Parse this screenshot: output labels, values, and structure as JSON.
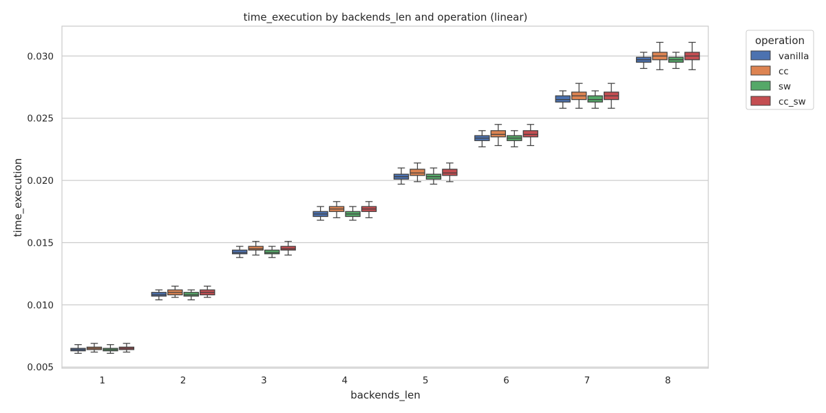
{
  "chart_data": {
    "type": "box",
    "title": "time_execution by backends_len and operation (linear)",
    "xlabel": "backends_len",
    "ylabel": "time_execution",
    "categories": [
      "1",
      "2",
      "3",
      "4",
      "5",
      "6",
      "7",
      "8"
    ],
    "ylim": [
      0.0049,
      0.0324
    ],
    "yticks": [
      0.005,
      0.01,
      0.015,
      0.02,
      0.025,
      0.03
    ],
    "ytick_labels": [
      "0.005",
      "0.010",
      "0.015",
      "0.020",
      "0.025",
      "0.030"
    ],
    "grid": "y",
    "legend": {
      "title": "operation",
      "placement": "outside-top-right",
      "entries": [
        {
          "name": "vanilla",
          "color": "#4c72b0"
        },
        {
          "name": "cc",
          "color": "#dd8452"
        },
        {
          "name": "sw",
          "color": "#55a868"
        },
        {
          "name": "cc_sw",
          "color": "#c44e52"
        }
      ]
    },
    "series": [
      {
        "name": "vanilla",
        "color": "#4c72b0",
        "boxes": [
          {
            "min": 0.0061,
            "q1": 0.0063,
            "median": 0.0064,
            "q3": 0.0065,
            "max": 0.0068
          },
          {
            "min": 0.0104,
            "q1": 0.0107,
            "median": 0.0108,
            "q3": 0.011,
            "max": 0.0112
          },
          {
            "min": 0.0138,
            "q1": 0.0141,
            "median": 0.0142,
            "q3": 0.0144,
            "max": 0.0147
          },
          {
            "min": 0.0168,
            "q1": 0.0171,
            "median": 0.0173,
            "q3": 0.0175,
            "max": 0.0179
          },
          {
            "min": 0.0197,
            "q1": 0.0201,
            "median": 0.0203,
            "q3": 0.0205,
            "max": 0.021
          },
          {
            "min": 0.0227,
            "q1": 0.0232,
            "median": 0.0234,
            "q3": 0.0236,
            "max": 0.024
          },
          {
            "min": 0.0258,
            "q1": 0.0263,
            "median": 0.0265,
            "q3": 0.0268,
            "max": 0.0272
          },
          {
            "min": 0.029,
            "q1": 0.0295,
            "median": 0.0297,
            "q3": 0.0299,
            "max": 0.0303
          }
        ]
      },
      {
        "name": "cc",
        "color": "#dd8452",
        "boxes": [
          {
            "min": 0.0062,
            "q1": 0.0064,
            "median": 0.0065,
            "q3": 0.0066,
            "max": 0.0069
          },
          {
            "min": 0.0106,
            "q1": 0.0108,
            "median": 0.011,
            "q3": 0.0112,
            "max": 0.0115
          },
          {
            "min": 0.014,
            "q1": 0.0144,
            "median": 0.0145,
            "q3": 0.0147,
            "max": 0.0151
          },
          {
            "min": 0.017,
            "q1": 0.0175,
            "median": 0.0177,
            "q3": 0.0179,
            "max": 0.0183
          },
          {
            "min": 0.0199,
            "q1": 0.0204,
            "median": 0.0206,
            "q3": 0.0209,
            "max": 0.0214
          },
          {
            "min": 0.0228,
            "q1": 0.0235,
            "median": 0.0237,
            "q3": 0.024,
            "max": 0.0245
          },
          {
            "min": 0.0258,
            "q1": 0.0265,
            "median": 0.0268,
            "q3": 0.0271,
            "max": 0.0278
          },
          {
            "min": 0.0289,
            "q1": 0.0297,
            "median": 0.03,
            "q3": 0.0303,
            "max": 0.0311
          }
        ]
      },
      {
        "name": "sw",
        "color": "#55a868",
        "boxes": [
          {
            "min": 0.0061,
            "q1": 0.0063,
            "median": 0.0064,
            "q3": 0.0065,
            "max": 0.0068
          },
          {
            "min": 0.0104,
            "q1": 0.0107,
            "median": 0.0108,
            "q3": 0.011,
            "max": 0.0112
          },
          {
            "min": 0.0138,
            "q1": 0.0141,
            "median": 0.0142,
            "q3": 0.0144,
            "max": 0.0147
          },
          {
            "min": 0.0168,
            "q1": 0.0171,
            "median": 0.0173,
            "q3": 0.0175,
            "max": 0.0179
          },
          {
            "min": 0.0197,
            "q1": 0.0201,
            "median": 0.0203,
            "q3": 0.0205,
            "max": 0.021
          },
          {
            "min": 0.0227,
            "q1": 0.0232,
            "median": 0.0234,
            "q3": 0.0236,
            "max": 0.024
          },
          {
            "min": 0.0258,
            "q1": 0.0263,
            "median": 0.0265,
            "q3": 0.0268,
            "max": 0.0272
          },
          {
            "min": 0.029,
            "q1": 0.0295,
            "median": 0.0297,
            "q3": 0.0299,
            "max": 0.0303
          }
        ]
      },
      {
        "name": "cc_sw",
        "color": "#c44e52",
        "boxes": [
          {
            "min": 0.0062,
            "q1": 0.0064,
            "median": 0.0065,
            "q3": 0.0066,
            "max": 0.0069
          },
          {
            "min": 0.0106,
            "q1": 0.0108,
            "median": 0.011,
            "q3": 0.0112,
            "max": 0.0115
          },
          {
            "min": 0.014,
            "q1": 0.0144,
            "median": 0.0145,
            "q3": 0.0147,
            "max": 0.0151
          },
          {
            "min": 0.017,
            "q1": 0.0175,
            "median": 0.0177,
            "q3": 0.0179,
            "max": 0.0183
          },
          {
            "min": 0.0199,
            "q1": 0.0204,
            "median": 0.0206,
            "q3": 0.0209,
            "max": 0.0214
          },
          {
            "min": 0.0228,
            "q1": 0.0235,
            "median": 0.0237,
            "q3": 0.024,
            "max": 0.0245
          },
          {
            "min": 0.0258,
            "q1": 0.0265,
            "median": 0.0268,
            "q3": 0.0271,
            "max": 0.0278
          },
          {
            "min": 0.0289,
            "q1": 0.0297,
            "median": 0.03,
            "q3": 0.0303,
            "max": 0.0311
          }
        ]
      }
    ]
  }
}
